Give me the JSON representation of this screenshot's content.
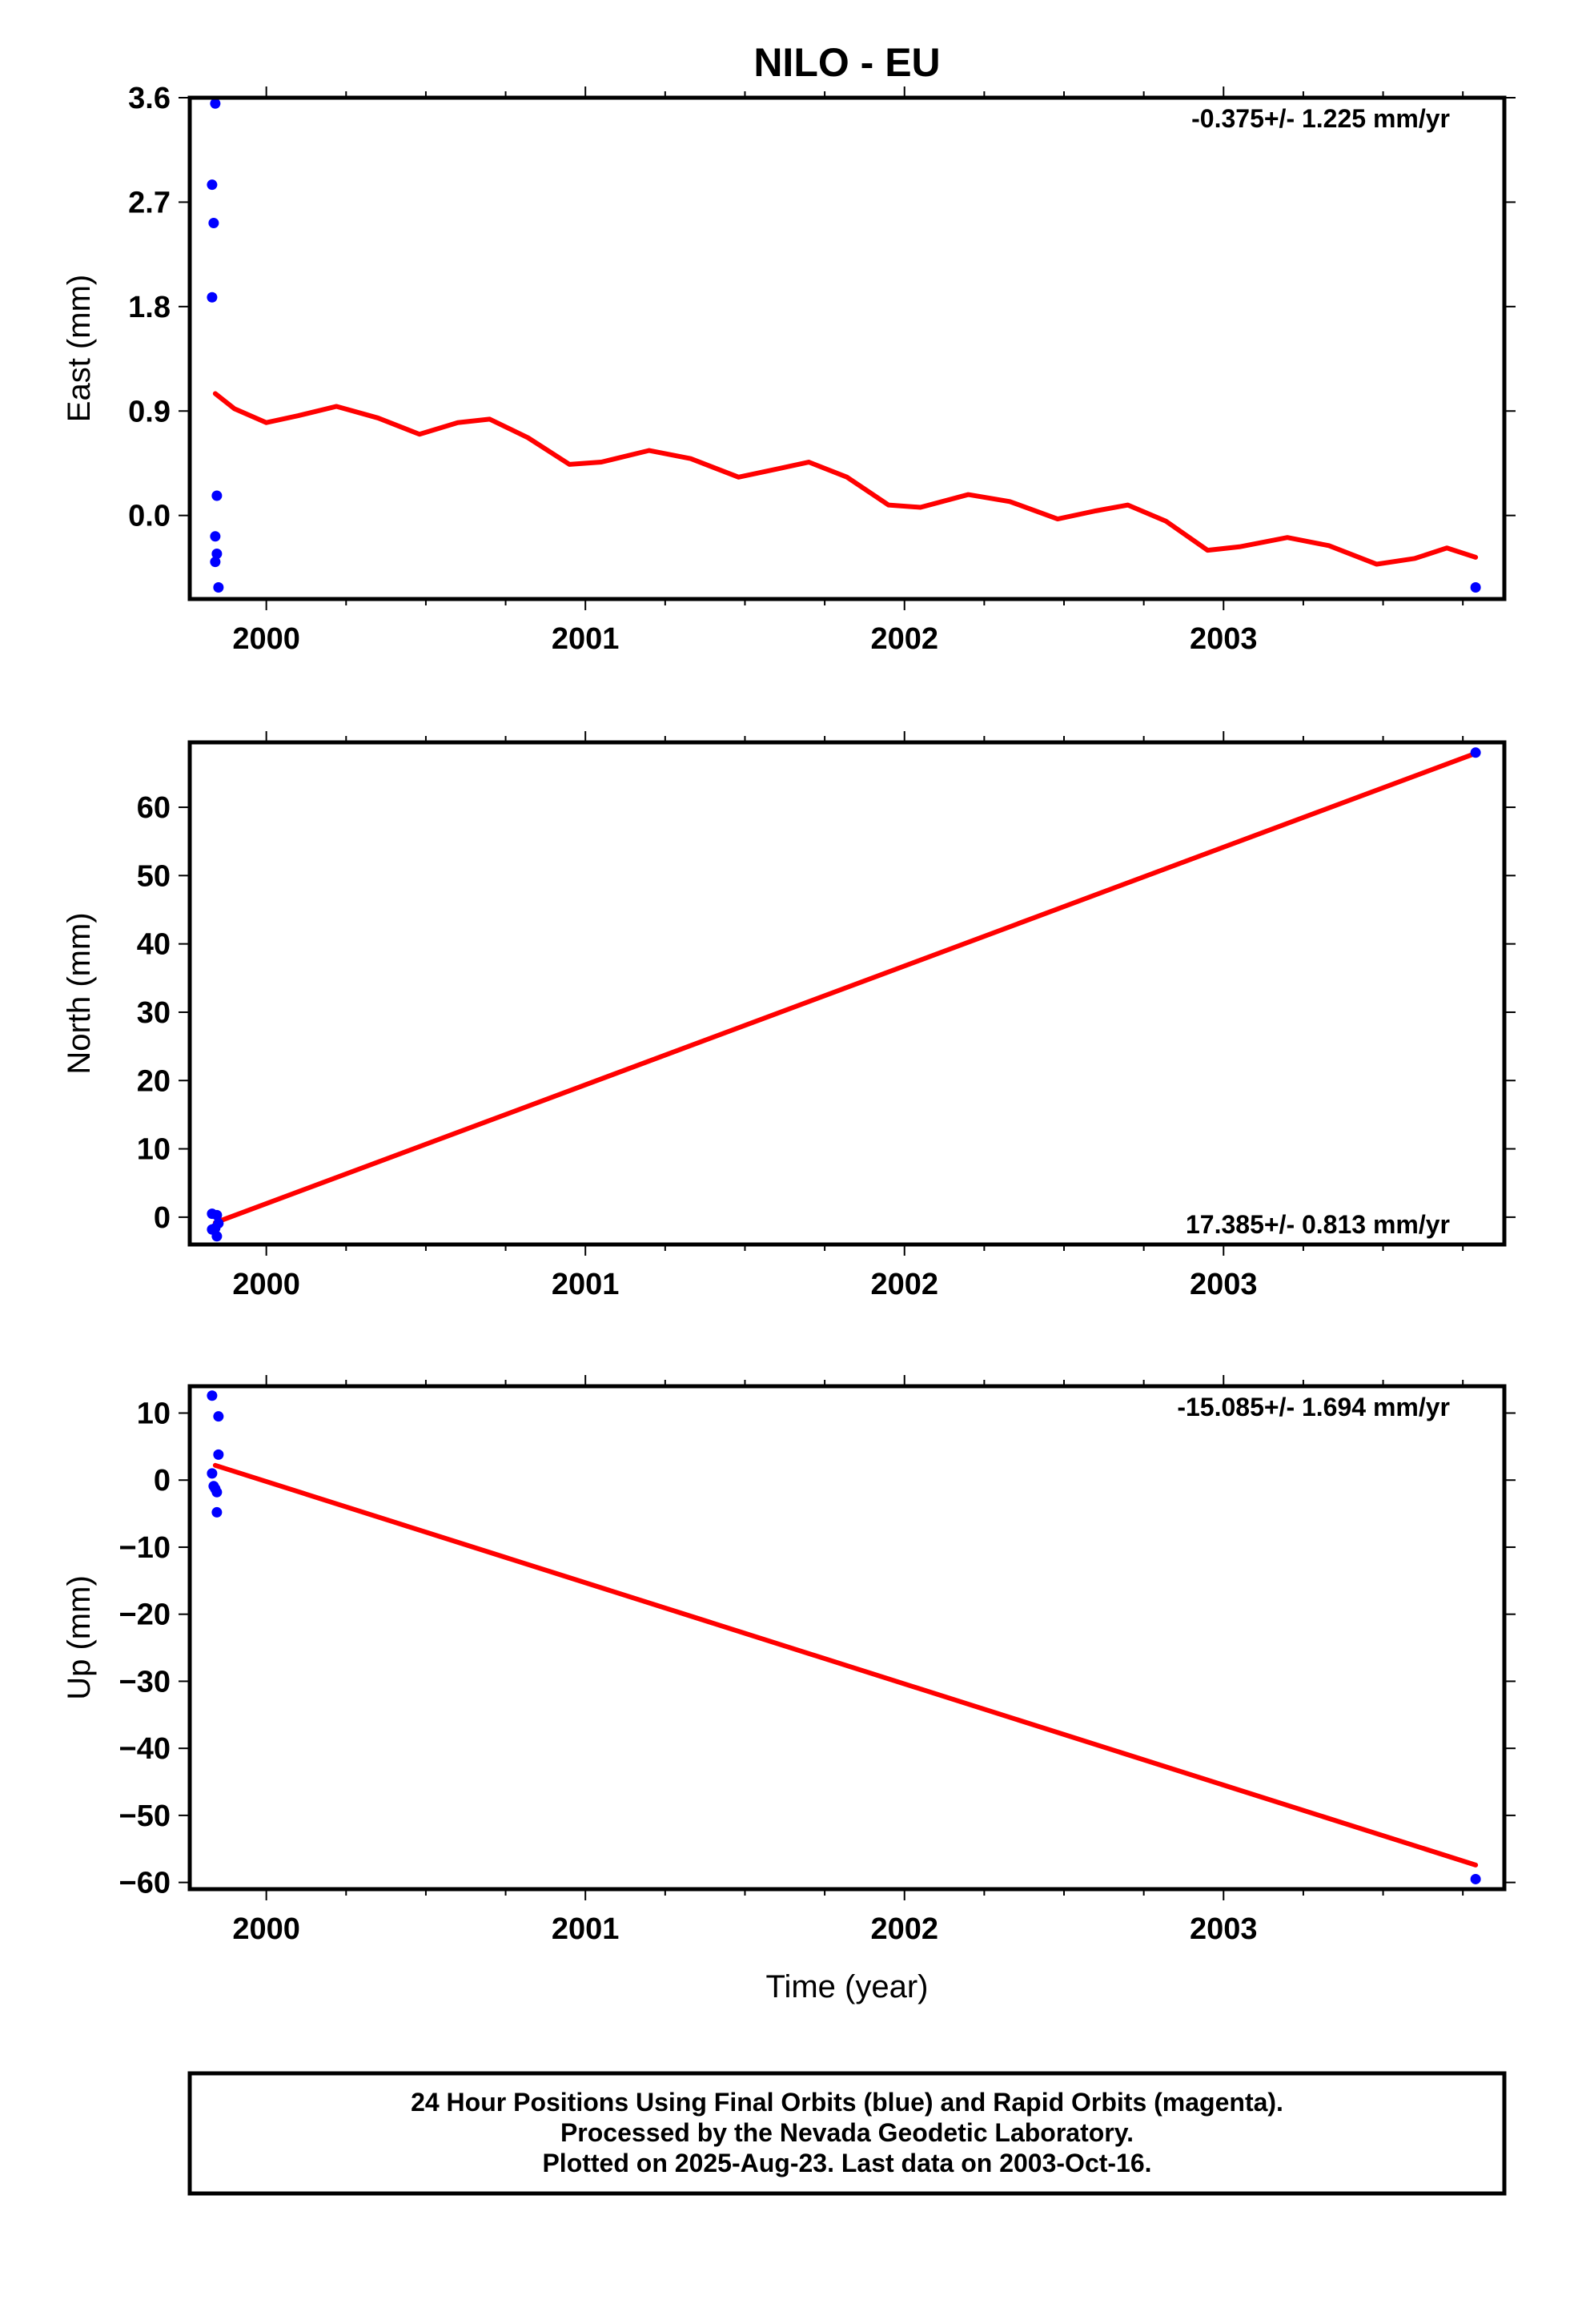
{
  "title": "NILO - EU",
  "colors": {
    "fit_line": "#ff0000",
    "final_points": "#0000ff",
    "frame": "#000000"
  },
  "footer": {
    "line1": "24 Hour Positions Using Final Orbits (blue) and Rapid Orbits (magenta).",
    "line2": "Processed by the Nevada Geodetic Laboratory.",
    "line3": "Plotted on 2025-Aug-23. Last data on 2003-Oct-16."
  },
  "chart_data": [
    {
      "type": "scatter",
      "panel": "east",
      "ylabel": "East (mm)",
      "xlabel": "",
      "rate_text": "-0.375+/- 1.225 mm/yr",
      "rate_position": "top-right",
      "xlim": [
        1999.76,
        2003.88
      ],
      "ylim": [
        -0.72,
        3.6
      ],
      "x_ticks": [
        2000,
        2001,
        2002,
        2003
      ],
      "x_tick_labels": [
        "2000",
        "2001",
        "2002",
        "2003"
      ],
      "y_ticks": [
        0.0,
        0.9,
        1.8,
        2.7,
        3.6
      ],
      "y_tick_labels": [
        "0.0",
        "0.9",
        "1.8",
        "2.7",
        "3.6"
      ],
      "points": [
        {
          "x": 1999.84,
          "y": 3.55
        },
        {
          "x": 1999.83,
          "y": 2.85
        },
        {
          "x": 1999.835,
          "y": 2.52
        },
        {
          "x": 1999.83,
          "y": 1.88
        },
        {
          "x": 1999.845,
          "y": 0.17
        },
        {
          "x": 1999.84,
          "y": -0.18
        },
        {
          "x": 1999.845,
          "y": -0.33
        },
        {
          "x": 1999.84,
          "y": -0.4
        },
        {
          "x": 1999.85,
          "y": -0.62
        },
        {
          "x": 2003.79,
          "y": -0.62
        }
      ],
      "fit": {
        "x": [
          1999.84,
          1999.9,
          2000.0,
          2000.1,
          2000.22,
          2000.35,
          2000.48,
          2000.6,
          2000.7,
          2000.82,
          2000.95,
          2001.05,
          2001.2,
          2001.33,
          2001.48,
          2001.6,
          2001.7,
          2001.82,
          2001.95,
          2002.05,
          2002.2,
          2002.33,
          2002.48,
          2002.6,
          2002.7,
          2002.82,
          2002.95,
          2003.05,
          2003.2,
          2003.33,
          2003.48,
          2003.6,
          2003.7,
          2003.79
        ],
        "y": [
          1.05,
          0.92,
          0.8,
          0.86,
          0.94,
          0.84,
          0.7,
          0.8,
          0.83,
          0.67,
          0.44,
          0.46,
          0.56,
          0.49,
          0.33,
          0.4,
          0.46,
          0.33,
          0.09,
          0.07,
          0.18,
          0.12,
          -0.03,
          0.04,
          0.09,
          -0.05,
          -0.3,
          -0.27,
          -0.19,
          -0.26,
          -0.42,
          -0.37,
          -0.28,
          -0.36
        ]
      }
    },
    {
      "type": "scatter",
      "panel": "north",
      "ylabel": "North (mm)",
      "xlabel": "",
      "rate_text": "17.385+/- 0.813 mm/yr",
      "rate_position": "bottom-right",
      "xlim": [
        1999.76,
        2003.88
      ],
      "ylim": [
        -4,
        69.5
      ],
      "x_ticks": [
        2000,
        2001,
        2002,
        2003
      ],
      "x_tick_labels": [
        "2000",
        "2001",
        "2002",
        "2003"
      ],
      "y_ticks": [
        0,
        10,
        20,
        30,
        40,
        50,
        60
      ],
      "y_tick_labels": [
        "0",
        "10",
        "20",
        "30",
        "40",
        "50",
        "60"
      ],
      "points": [
        {
          "x": 1999.83,
          "y": 0.5
        },
        {
          "x": 1999.845,
          "y": 0.3
        },
        {
          "x": 1999.84,
          "y": -1.6
        },
        {
          "x": 1999.83,
          "y": -1.8
        },
        {
          "x": 1999.85,
          "y": -0.9
        },
        {
          "x": 1999.845,
          "y": -2.8
        },
        {
          "x": 2003.79,
          "y": 68.0
        }
      ],
      "fit": {
        "x": [
          1999.84,
          2003.79
        ],
        "y": [
          -0.8,
          67.9
        ]
      }
    },
    {
      "type": "scatter",
      "panel": "up",
      "ylabel": "Up (mm)",
      "xlabel": "Time (year)",
      "rate_text": "-15.085+/- 1.694 mm/yr",
      "rate_position": "top-right",
      "xlim": [
        1999.76,
        2003.88
      ],
      "ylim": [
        -61,
        14
      ],
      "x_ticks": [
        2000,
        2001,
        2002,
        2003
      ],
      "x_tick_labels": [
        "2000",
        "2001",
        "2002",
        "2003"
      ],
      "y_ticks": [
        10,
        0,
        -10,
        -20,
        -30,
        -40,
        -50,
        -60
      ],
      "y_tick_labels": [
        "10",
        "0",
        "−10",
        "−20",
        "−30",
        "−40",
        "−50",
        "−60"
      ],
      "points": [
        {
          "x": 1999.83,
          "y": 12.6
        },
        {
          "x": 1999.85,
          "y": 9.5
        },
        {
          "x": 1999.85,
          "y": 3.8
        },
        {
          "x": 1999.83,
          "y": 1.0
        },
        {
          "x": 1999.835,
          "y": -0.9
        },
        {
          "x": 1999.84,
          "y": -1.3
        },
        {
          "x": 1999.845,
          "y": -1.8
        },
        {
          "x": 1999.845,
          "y": -4.8
        },
        {
          "x": 2003.79,
          "y": -59.5
        }
      ],
      "fit": {
        "x": [
          1999.84,
          2003.79
        ],
        "y": [
          2.2,
          -57.4
        ]
      }
    }
  ]
}
